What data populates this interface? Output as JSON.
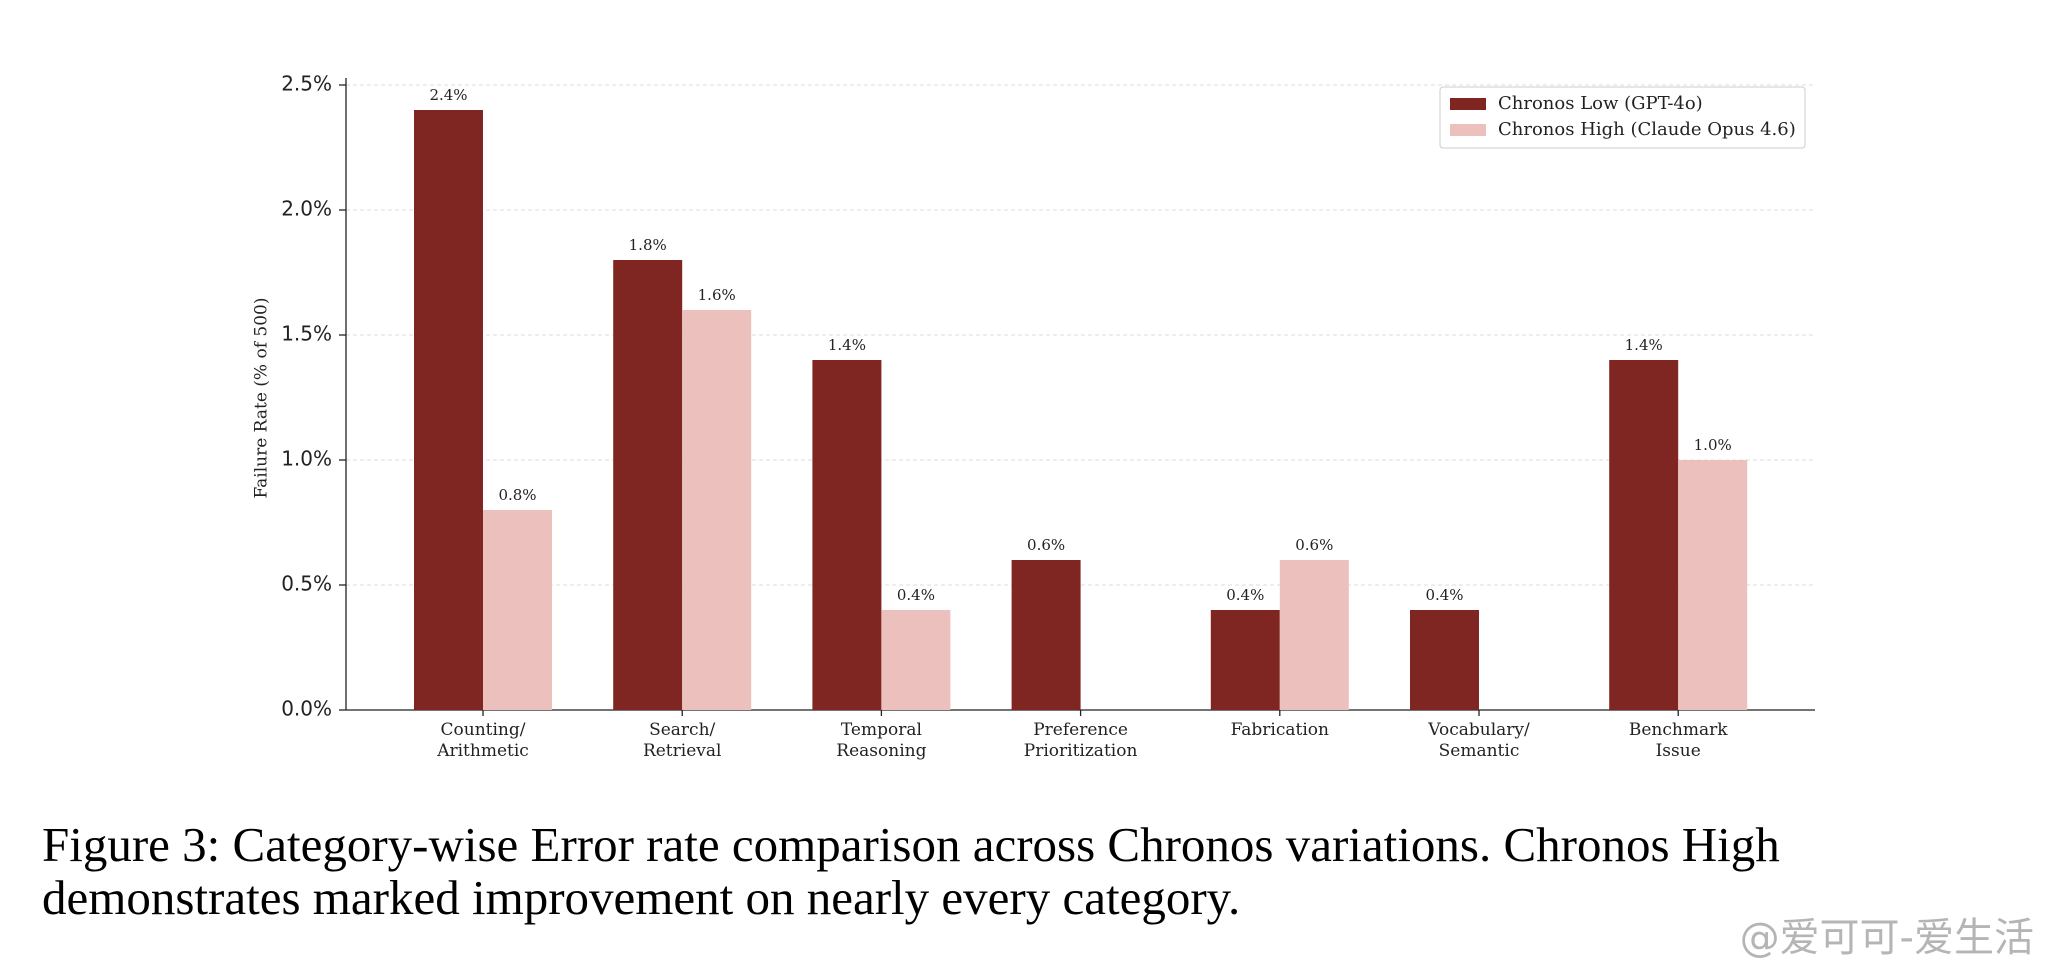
{
  "chart_data": {
    "type": "bar",
    "ylabel": "Failure Rate (% of 500)",
    "categories": [
      "Counting/\nArithmetic",
      "Search/\nRetrieval",
      "Temporal\nReasoning",
      "Preference\nPrioritization",
      "Fabrication",
      "Vocabulary/\nSemantic",
      "Benchmark\nIssue"
    ],
    "series": [
      {
        "name": "Chronos Low (GPT-4o)",
        "color": "#7f2622",
        "values": [
          2.4,
          1.8,
          1.4,
          0.6,
          0.4,
          0.4,
          1.4
        ],
        "value_labels": [
          "2.4%",
          "1.8%",
          "1.4%",
          "0.6%",
          "0.4%",
          "0.4%",
          "1.4%"
        ]
      },
      {
        "name": "Chronos High (Claude Opus 4.6)",
        "color": "#ecc0bc",
        "values": [
          0.8,
          1.6,
          0.4,
          null,
          0.6,
          null,
          1.0
        ],
        "value_labels": [
          "0.8%",
          "1.6%",
          "0.4%",
          null,
          "0.6%",
          null,
          "1.0%"
        ]
      }
    ],
    "ylim": [
      0,
      2.5
    ],
    "yticks": [
      {
        "value": 0,
        "label": "0.0%"
      },
      {
        "value": 0.5,
        "label": "0.5%"
      },
      {
        "value": 1,
        "label": "1.0%"
      },
      {
        "value": 1.5,
        "label": "1.5%"
      },
      {
        "value": 2,
        "label": "2.0%"
      },
      {
        "value": 2.5,
        "label": "2.5%"
      }
    ],
    "grid": true,
    "legend": "upper right"
  },
  "caption": "Figure 3: Category-wise Error rate comparison across Chronos variations. Chronos High demonstrates marked improvement on nearly every category.",
  "watermark": "@爱可可-爱生活"
}
